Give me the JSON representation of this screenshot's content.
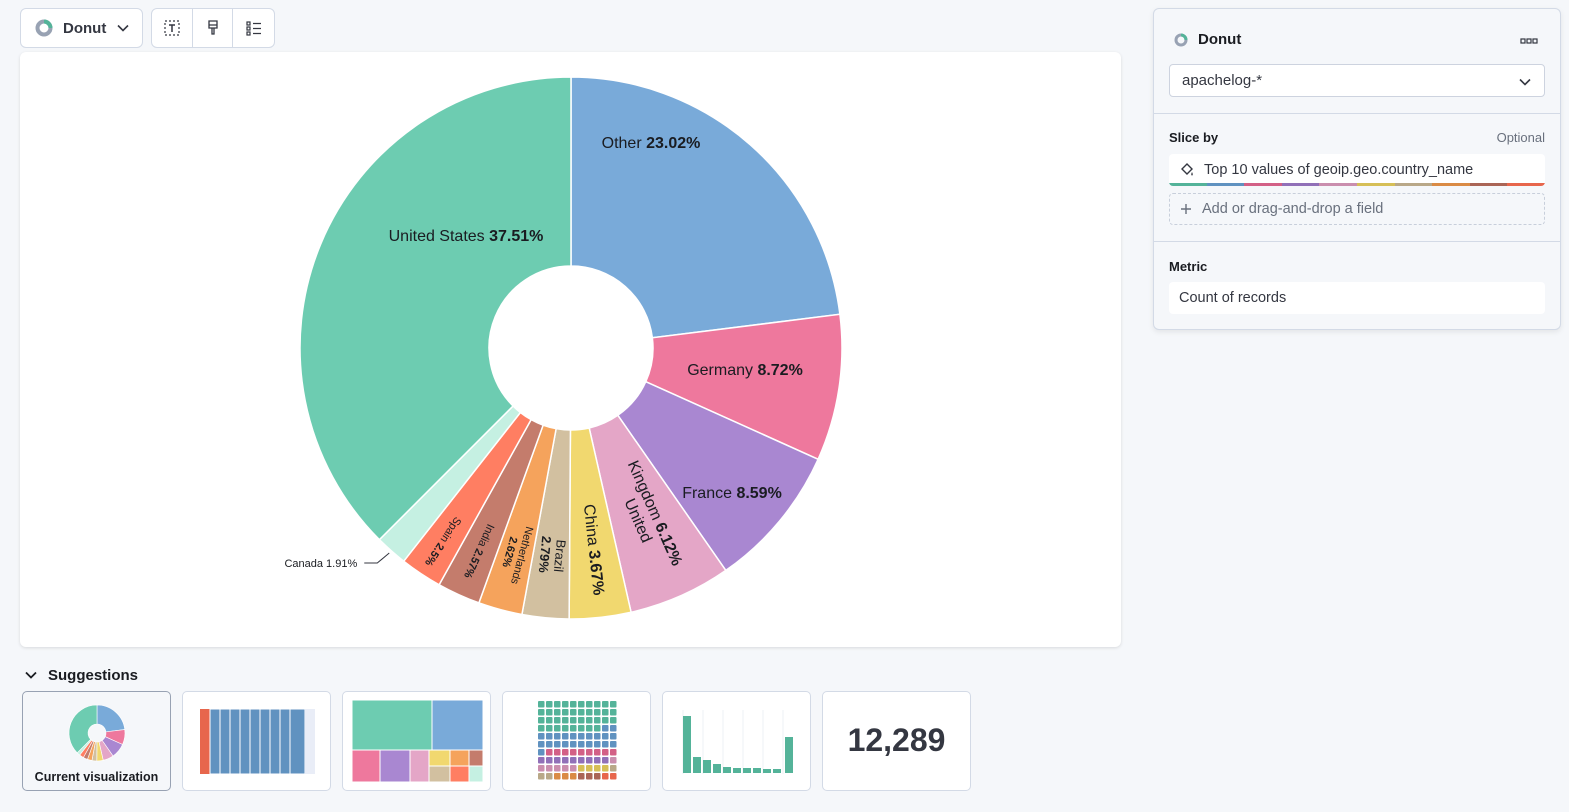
{
  "toolbar": {
    "chart_type_label": "Donut",
    "icons": [
      "donut-icon",
      "chevron-down-icon",
      "text-icon",
      "paintbrush-icon",
      "legend-icon"
    ]
  },
  "chart_data": {
    "type": "pie",
    "variant": "donut",
    "title": "",
    "categories": [
      "United States",
      "Other",
      "Germany",
      "France",
      "United Kingdom",
      "China",
      "Brazil",
      "Netherlands",
      "India",
      "Spain",
      "Canada"
    ],
    "values": [
      37.51,
      23.02,
      8.72,
      8.59,
      6.12,
      3.67,
      2.79,
      2.62,
      2.57,
      2.5,
      1.91
    ],
    "value_labels": [
      "37.51%",
      "23.02%",
      "8.72%",
      "8.59%",
      "6.12%",
      "3.67%",
      "2.79%",
      "2.62%",
      "2.57%",
      "2.5%",
      "1.91%"
    ],
    "colors": [
      "#6dccb1",
      "#79aad9",
      "#ee789d",
      "#a987d1",
      "#e4a6c7",
      "#f1d86f",
      "#d2c0a0",
      "#f5a35c",
      "#c47c6c",
      "#ff7e62",
      "#c5f0e2"
    ],
    "start_order": [
      "Other",
      "Germany",
      "France",
      "United Kingdom",
      "China",
      "Brazil",
      "Netherlands",
      "India",
      "Spain",
      "Canada",
      "United States"
    ]
  },
  "suggestions": {
    "title": "Suggestions",
    "current_label": "Current visualization",
    "metric_value": "12,289"
  },
  "config": {
    "title": "Donut",
    "data_view": "apachelog-*",
    "slice_by_title": "Slice by",
    "optional_label": "Optional",
    "slice_by_value": "Top 10 values of geoip.geo.country_name",
    "add_field_label": "Add or drag-and-drop a field",
    "metric_title": "Metric",
    "metric_value": "Count of records",
    "palette": [
      "#54b399",
      "#6092c0",
      "#d36086",
      "#9170b8",
      "#ca8eae",
      "#d6bf57",
      "#b9a888",
      "#da8b45",
      "#aa6556",
      "#e7664c"
    ]
  }
}
